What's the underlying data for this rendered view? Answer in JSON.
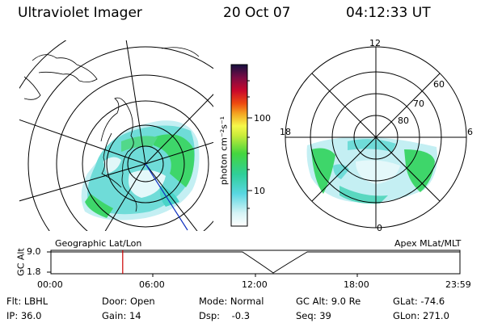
{
  "header": {
    "title": "Ultraviolet Imager",
    "date": "20 Oct 07",
    "time": "04:12:33 UT"
  },
  "colorbar": {
    "unit_label": "photon cm⁻²s⁻¹",
    "ticks": [
      "100",
      "10"
    ]
  },
  "geo_map": {
    "caption": "Geographic Lat/Lon"
  },
  "apex_map": {
    "caption": "Apex MLat/MLT",
    "mlt_labels": [
      "12",
      "18",
      "6",
      "0"
    ],
    "mlat_labels": [
      "60",
      "70",
      "80"
    ]
  },
  "timeline": {
    "ylabel": "GC Alt",
    "yticks": [
      "9.0",
      "1.8"
    ],
    "xticks": [
      "00:00",
      "06:00",
      "12:00",
      "18:00",
      "23:59"
    ],
    "current_time_hours": 4.21
  },
  "info": {
    "filter": "Flt: LBHL",
    "ip": "IP: 36.0",
    "door": "Door: Open",
    "gain": "Gain: 14",
    "mode": "Mode: Normal",
    "dsp": "Dsp:    -0.3",
    "gc_alt": "GC Alt: 9.0 Re",
    "seq": "Seq: 39",
    "glat": "GLat: -74.6",
    "glon": "GLon: 271.0"
  },
  "colors": {
    "aurora_light": "#bfeef2",
    "aurora_cyan": "#4fd6d0",
    "aurora_green": "#3ed66a",
    "time_marker": "#cc0000"
  }
}
